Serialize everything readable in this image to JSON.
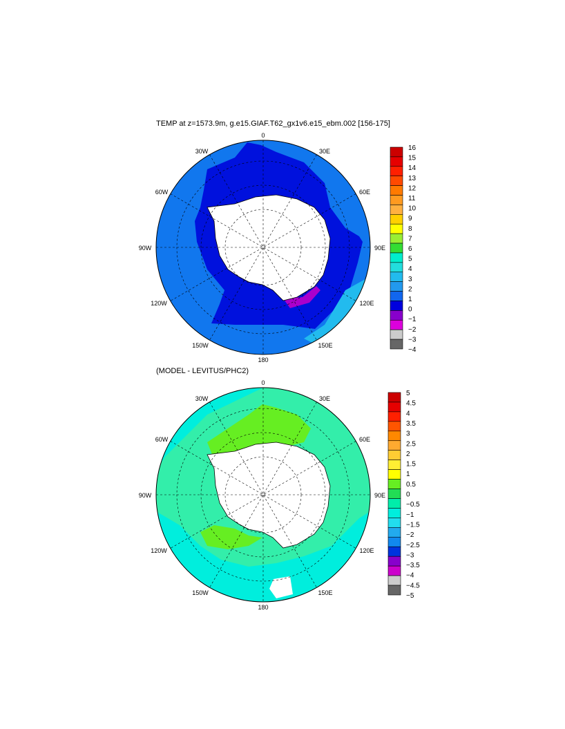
{
  "panels": [
    {
      "title": "TEMP at z=1573.9m, g.e15.GIAF.T62_gx1v6.e15_ebm.002 [156-175]",
      "longitude_labels": {
        "top": "0",
        "upper_left": "30W",
        "upper_right": "30E",
        "left_upper": "60W",
        "right_upper": "60E",
        "left": "90W",
        "right": "90E",
        "left_lower": "120W",
        "right_lower": "120E",
        "lower_left": "150W",
        "lower_right": "150E",
        "bottom": "180"
      },
      "colorbar": {
        "labels": [
          "16",
          "15",
          "14",
          "13",
          "12",
          "11",
          "10",
          "9",
          "8",
          "7",
          "6",
          "5",
          "4",
          "3",
          "2",
          "1",
          "0",
          "−1",
          "−2",
          "−3",
          "−4"
        ],
        "colors": [
          "#cc0000",
          "#e60000",
          "#ff2000",
          "#ff4a00",
          "#ff7a00",
          "#ff9a20",
          "#ffb040",
          "#ffd000",
          "#ffff00",
          "#99ee33",
          "#33dd33",
          "#00eecc",
          "#22dddd",
          "#22bbee",
          "#2299ee",
          "#1166ee",
          "#0000dd",
          "#8800cc",
          "#dd00dd",
          "#cccccc",
          "#666666"
        ]
      },
      "fields": {
        "ocean": "#1177ee",
        "deep": "#0011dd",
        "land": "#ffffff",
        "cold": "#aa00cc"
      }
    },
    {
      "title": "(MODEL - LEVITUS/PHC2)",
      "longitude_labels": {
        "top": "0",
        "upper_left": "30W",
        "upper_right": "30E",
        "left_upper": "60W",
        "right_upper": "60E",
        "left": "90W",
        "right": "90E",
        "left_lower": "120W",
        "right_lower": "120E",
        "lower_left": "150W",
        "lower_right": "150E",
        "bottom": "180"
      },
      "colorbar": {
        "labels": [
          "5",
          "4.5",
          "4",
          "3.5",
          "3",
          "2.5",
          "2",
          "1.5",
          "1",
          "0.5",
          "0",
          "−0.5",
          "−1",
          "−1.5",
          "−2",
          "−2.5",
          "−3",
          "−3.5",
          "−4",
          "−4.5",
          "−5"
        ],
        "colors": [
          "#cc0000",
          "#e60000",
          "#ff2000",
          "#ff5500",
          "#ff8800",
          "#ffaa30",
          "#ffcc33",
          "#ffee33",
          "#ffff00",
          "#66ee22",
          "#22dd55",
          "#00eeaa",
          "#00eedd",
          "#22ddee",
          "#22aaee",
          "#1188ee",
          "#0033dd",
          "#8800cc",
          "#cc00cc",
          "#cccccc",
          "#666666"
        ]
      },
      "fields": {
        "ocean": "#33eeaa",
        "band": "#00eedd",
        "green": "#66ee22",
        "land": "#ffffff"
      }
    }
  ]
}
